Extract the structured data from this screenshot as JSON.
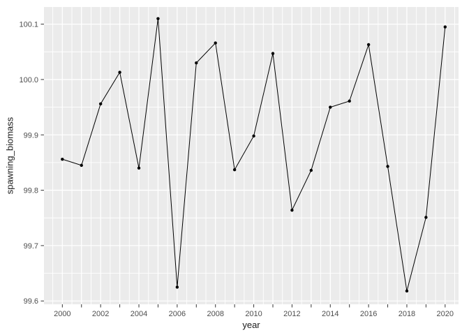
{
  "figure": {
    "xlabel": "year",
    "ylabel": "spawning_biomass"
  },
  "chart_data": {
    "type": "line",
    "title": "",
    "xlabel": "year",
    "ylabel": "spawning_biomass",
    "x": [
      2000,
      2001,
      2002,
      2003,
      2004,
      2005,
      2006,
      2007,
      2008,
      2009,
      2010,
      2011,
      2012,
      2013,
      2014,
      2015,
      2016,
      2017,
      2018,
      2019,
      2020
    ],
    "values": [
      99.856,
      99.845,
      99.956,
      100.013,
      99.84,
      100.11,
      99.625,
      100.03,
      100.066,
      99.837,
      99.898,
      100.047,
      99.764,
      99.836,
      99.95,
      99.961,
      100.063,
      99.843,
      99.618,
      99.751,
      100.095
    ],
    "xlim": [
      1999.04,
      2020.7
    ],
    "ylim": [
      99.594,
      100.131
    ],
    "x_labeled_ticks": [
      2000,
      2002,
      2004,
      2006,
      2008,
      2010,
      2012,
      2014,
      2016,
      2018,
      2020
    ],
    "x_tick_labels": [
      "2000",
      "2002",
      "2004",
      "2006",
      "2008",
      "2010",
      "2012",
      "2014",
      "2016",
      "2018",
      "2020"
    ],
    "x_minor_tick_years_start": 2000,
    "x_minor_tick_years_end": 2020,
    "y_ticks": [
      99.6,
      99.7,
      99.8,
      99.9,
      100.0,
      100.1
    ],
    "y_tick_labels": [
      "99.6",
      "99.7",
      "99.8",
      "99.9",
      "100.0",
      "100.1"
    ],
    "grid": "major and minor, white lines on grey panel",
    "legend": false,
    "style": {
      "panel_bg": "#EBEBEB",
      "grid_color": "#FFFFFF",
      "line_color": "#000000",
      "point_color": "#000000",
      "point_radius": 2.2,
      "tick_color": "#333333",
      "tick_label_color": "#4D4D4D",
      "axis_title_color": "#1A1A1A",
      "outer_bg": "#FFFFFF"
    }
  }
}
